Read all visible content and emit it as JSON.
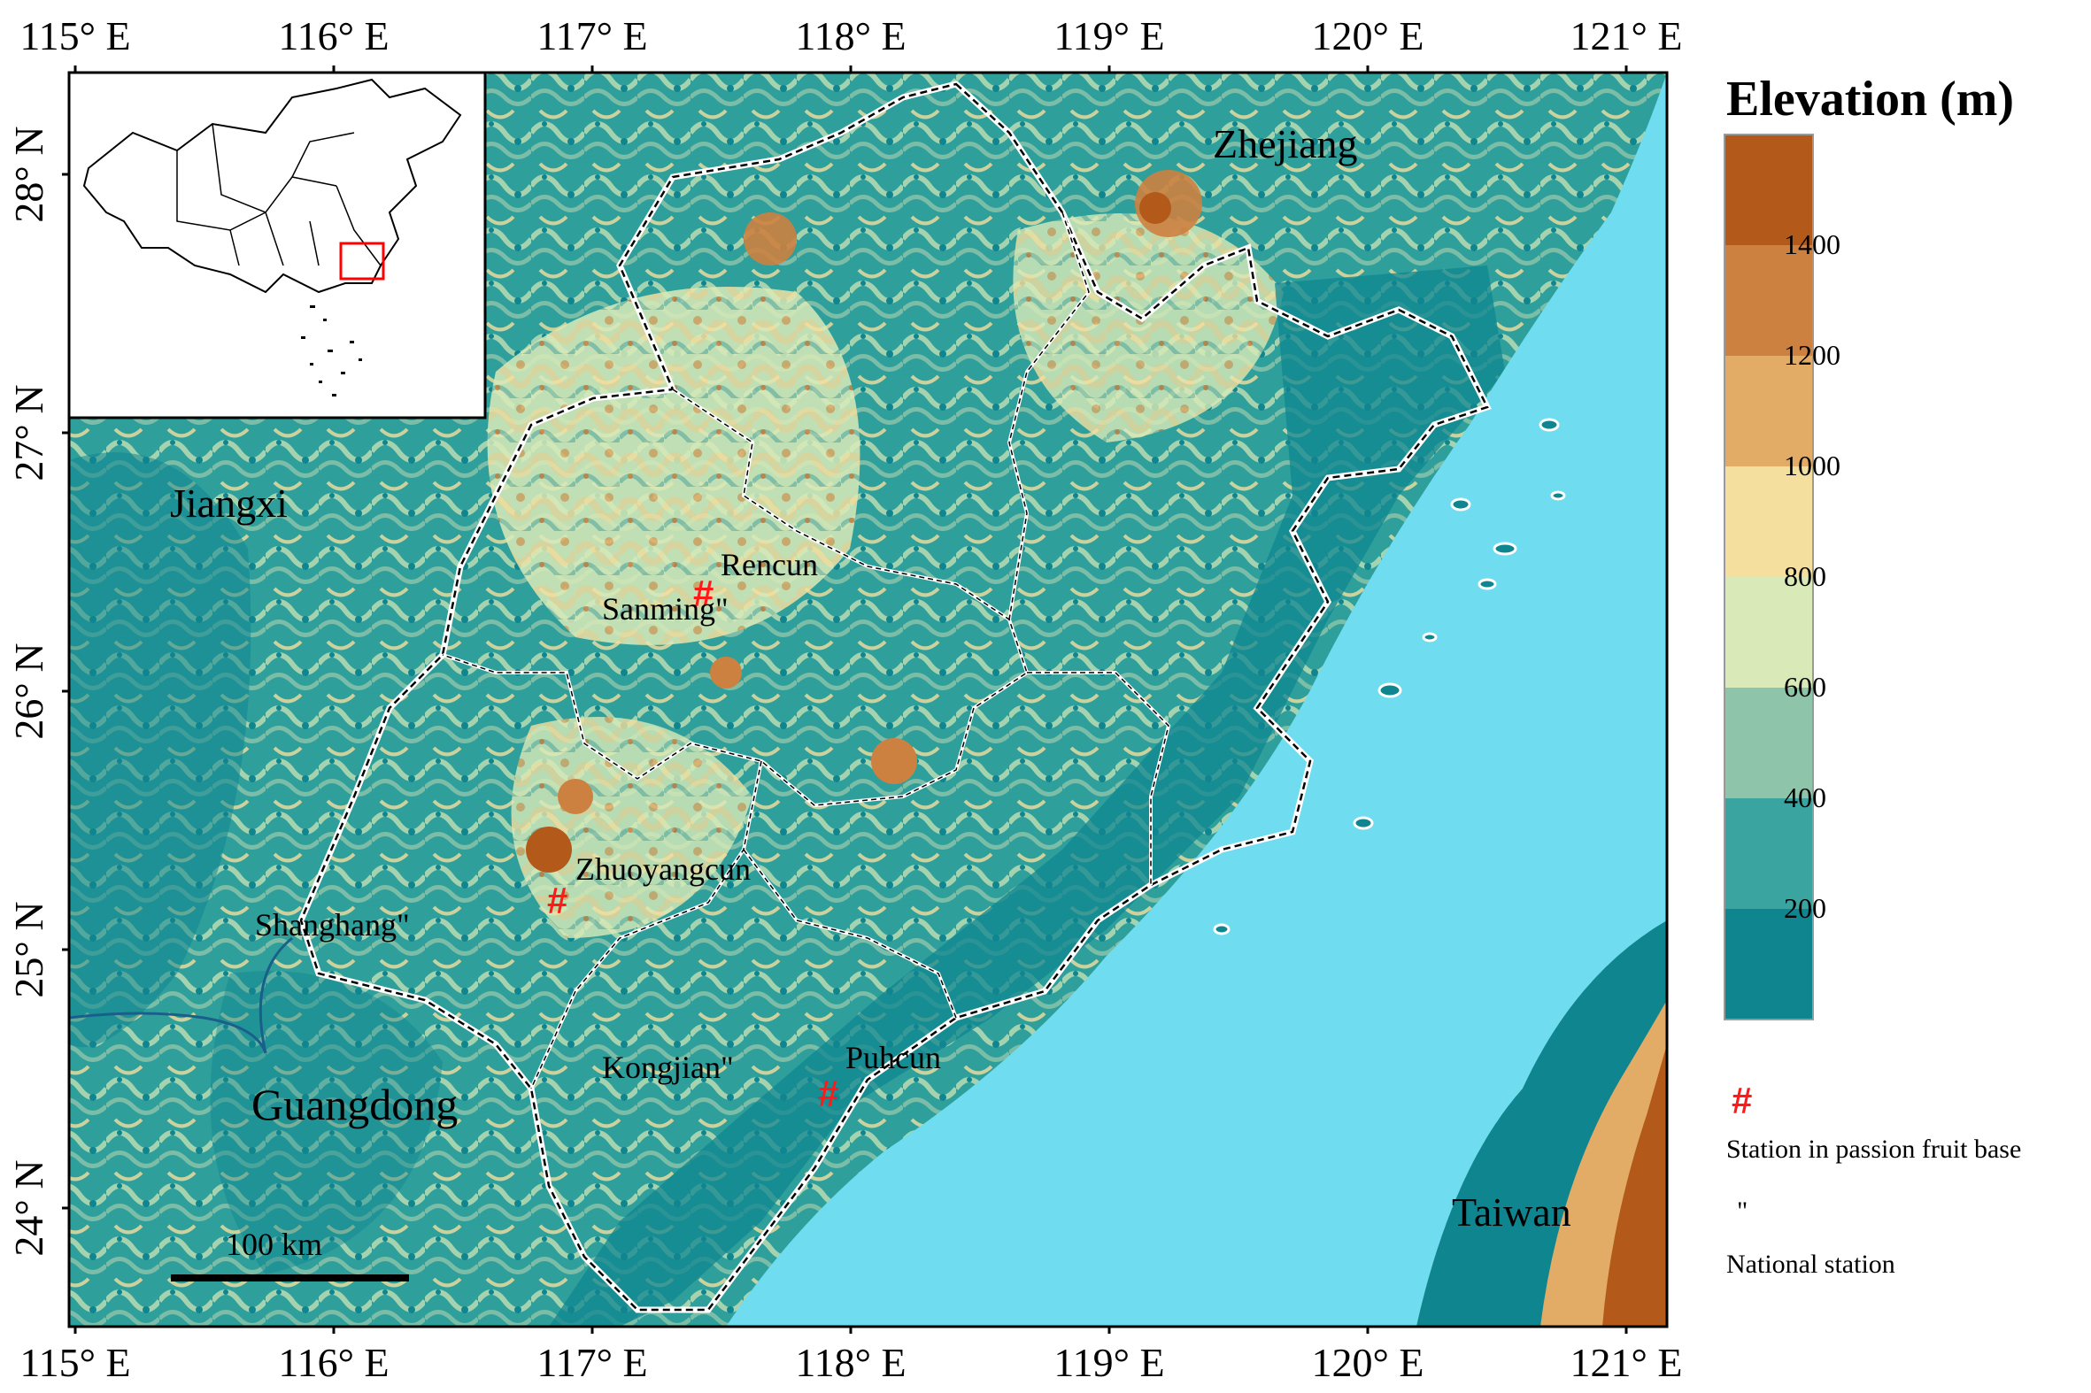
{
  "map": {
    "longitude_ticks": [
      "115° E",
      "116° E",
      "117° E",
      "118° E",
      "119° E",
      "120° E",
      "121° E"
    ],
    "latitude_ticks": [
      "24° N",
      "25° N",
      "26° N",
      "27° N",
      "28° N"
    ],
    "regions": {
      "zhejiang": "Zhejiang",
      "jiangxi": "Jiangxi",
      "guangdong": "Guangdong",
      "taiwan": "Taiwan"
    },
    "stations": {
      "rencun": "Rencun",
      "sanming": "Sanming\"",
      "zhuoyangcun": "Zhuoyangcun",
      "shanghang": "Shanghang\"",
      "kongjian": "Kongjian\"",
      "puhcun": "Puhcun"
    },
    "scale_bar": "100 km",
    "station_marker_symbol": "#"
  },
  "legend": {
    "title": "Elevation (m)",
    "class_labels": [
      "1400",
      "1200",
      "1000",
      "800",
      "600",
      "400",
      "200"
    ],
    "class_colors": [
      "#b35a1a",
      "#cd8140",
      "#e2ab66",
      "#f4df9f",
      "#d9eab8",
      "#8ec4a9",
      "#3aa5a0",
      "#0f8590"
    ],
    "fruit_base_symbol": "#",
    "fruit_base_label": "Station in passion fruit base",
    "national_symbol": "\"",
    "national_label": "National station"
  },
  "colors": {
    "sea": "#6fdcf0",
    "lowland": "#0f8590",
    "marker": "#ff1a1a",
    "inset_box": "#ff0000"
  }
}
